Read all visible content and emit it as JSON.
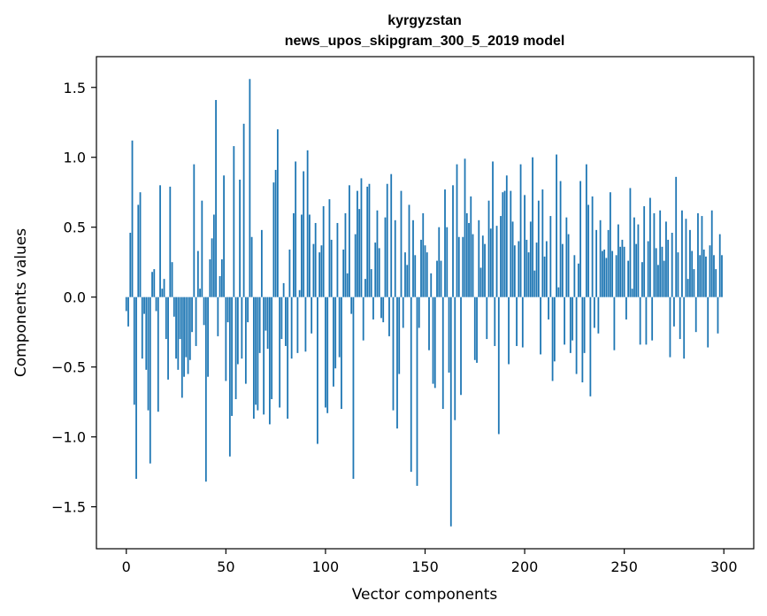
{
  "chart_data": {
    "type": "bar",
    "title_line1": "kyrgyzstan",
    "title_line2": "news_upos_skipgram_300_5_2019 model",
    "xlabel": "Vector components",
    "ylabel": "Components values",
    "xlim": [
      -15,
      315
    ],
    "ylim": [
      -1.8,
      1.72
    ],
    "xticks": [
      0,
      50,
      100,
      150,
      200,
      250,
      300
    ],
    "yticks": [
      -1.5,
      -1.0,
      -0.5,
      0.0,
      0.5,
      1.0,
      1.5
    ],
    "ytick_labels": [
      "−1.5",
      "−1.0",
      "−0.5",
      "0.0",
      "0.5",
      "1.0",
      "1.5"
    ],
    "bar_color": "#1f77b4",
    "grid": false,
    "x": "0..299 (component index)",
    "values": [
      -0.1,
      -0.21,
      0.46,
      1.12,
      -0.77,
      -1.3,
      0.66,
      0.75,
      -0.44,
      -0.12,
      -0.52,
      -0.81,
      -1.19,
      0.18,
      0.2,
      -0.1,
      -0.82,
      0.8,
      0.06,
      0.13,
      -0.3,
      -0.59,
      0.79,
      0.25,
      -0.14,
      -0.44,
      -0.52,
      -0.3,
      -0.72,
      -0.57,
      -0.43,
      -0.55,
      -0.45,
      -0.25,
      0.95,
      -0.35,
      0.33,
      0.06,
      0.69,
      -0.2,
      -1.32,
      -0.57,
      0.27,
      0.42,
      0.59,
      1.41,
      -0.28,
      0.15,
      0.27,
      0.87,
      -0.6,
      -0.18,
      -1.14,
      -0.85,
      1.08,
      -0.73,
      -0.48,
      0.84,
      -0.44,
      1.24,
      -0.62,
      -0.18,
      1.56,
      0.43,
      -0.87,
      -0.77,
      -0.81,
      -0.4,
      0.48,
      -0.84,
      -0.24,
      -0.37,
      -0.91,
      -0.73,
      0.82,
      0.91,
      1.2,
      -0.79,
      -0.3,
      0.1,
      -0.35,
      -0.87,
      0.34,
      -0.44,
      0.6,
      0.97,
      -0.4,
      0.05,
      0.59,
      0.9,
      -0.39,
      1.05,
      0.59,
      -0.26,
      0.38,
      0.53,
      -1.05,
      0.32,
      0.37,
      0.65,
      -0.79,
      -0.83,
      0.7,
      0.41,
      -0.64,
      -0.51,
      0.53,
      -0.43,
      -0.8,
      0.34,
      0.6,
      0.17,
      0.8,
      -0.12,
      -1.3,
      0.45,
      0.76,
      0.63,
      0.85,
      -0.31,
      0.13,
      0.79,
      0.81,
      0.2,
      -0.16,
      0.39,
      0.62,
      0.35,
      -0.15,
      -0.18,
      0.57,
      0.81,
      -0.28,
      0.88,
      -0.81,
      0.55,
      -0.94,
      -0.55,
      0.76,
      -0.22,
      0.32,
      0.23,
      0.66,
      -1.25,
      0.55,
      0.3,
      -1.35,
      -0.22,
      0.41,
      0.6,
      0.37,
      0.32,
      -0.38,
      0.17,
      -0.62,
      -0.65,
      0.26,
      0.5,
      0.26,
      -0.8,
      0.77,
      0.5,
      -0.54,
      -1.64,
      0.8,
      -0.88,
      0.95,
      0.43,
      -0.7,
      0.43,
      0.99,
      0.6,
      0.53,
      0.72,
      0.45,
      -0.45,
      -0.47,
      0.55,
      0.21,
      0.44,
      0.38,
      -0.3,
      0.69,
      0.49,
      0.97,
      -0.35,
      0.51,
      -0.98,
      0.58,
      0.75,
      0.76,
      0.87,
      -0.48,
      0.76,
      0.54,
      0.37,
      -0.35,
      0.4,
      0.95,
      -0.36,
      0.73,
      0.41,
      0.32,
      0.54,
      1.0,
      0.19,
      0.39,
      0.69,
      -0.41,
      0.77,
      0.29,
      0.4,
      -0.16,
      0.58,
      -0.6,
      -0.46,
      1.02,
      0.07,
      0.83,
      0.38,
      -0.34,
      0.57,
      0.45,
      -0.4,
      -0.31,
      0.3,
      -0.55,
      0.24,
      0.83,
      -0.61,
      -0.4,
      0.95,
      0.66,
      -0.71,
      0.72,
      -0.22,
      0.48,
      -0.26,
      0.55,
      0.33,
      0.34,
      0.28,
      0.48,
      0.75,
      0.33,
      -0.38,
      0.3,
      0.52,
      0.36,
      0.41,
      0.36,
      -0.16,
      0.26,
      0.78,
      0.06,
      0.57,
      0.38,
      0.52,
      -0.34,
      0.25,
      0.65,
      -0.34,
      0.4,
      0.71,
      -0.31,
      0.6,
      0.35,
      0.23,
      0.62,
      0.36,
      0.26,
      0.54,
      0.41,
      -0.43,
      0.46,
      -0.21,
      0.86,
      0.32,
      -0.3,
      0.62,
      -0.44,
      0.56,
      0.13,
      0.48,
      0.33,
      0.2,
      -0.25,
      0.6,
      0.3,
      0.58,
      0.34,
      0.29,
      -0.36,
      0.37,
      0.62,
      0.3,
      0.2,
      -0.26,
      0.45,
      0.3
    ]
  }
}
